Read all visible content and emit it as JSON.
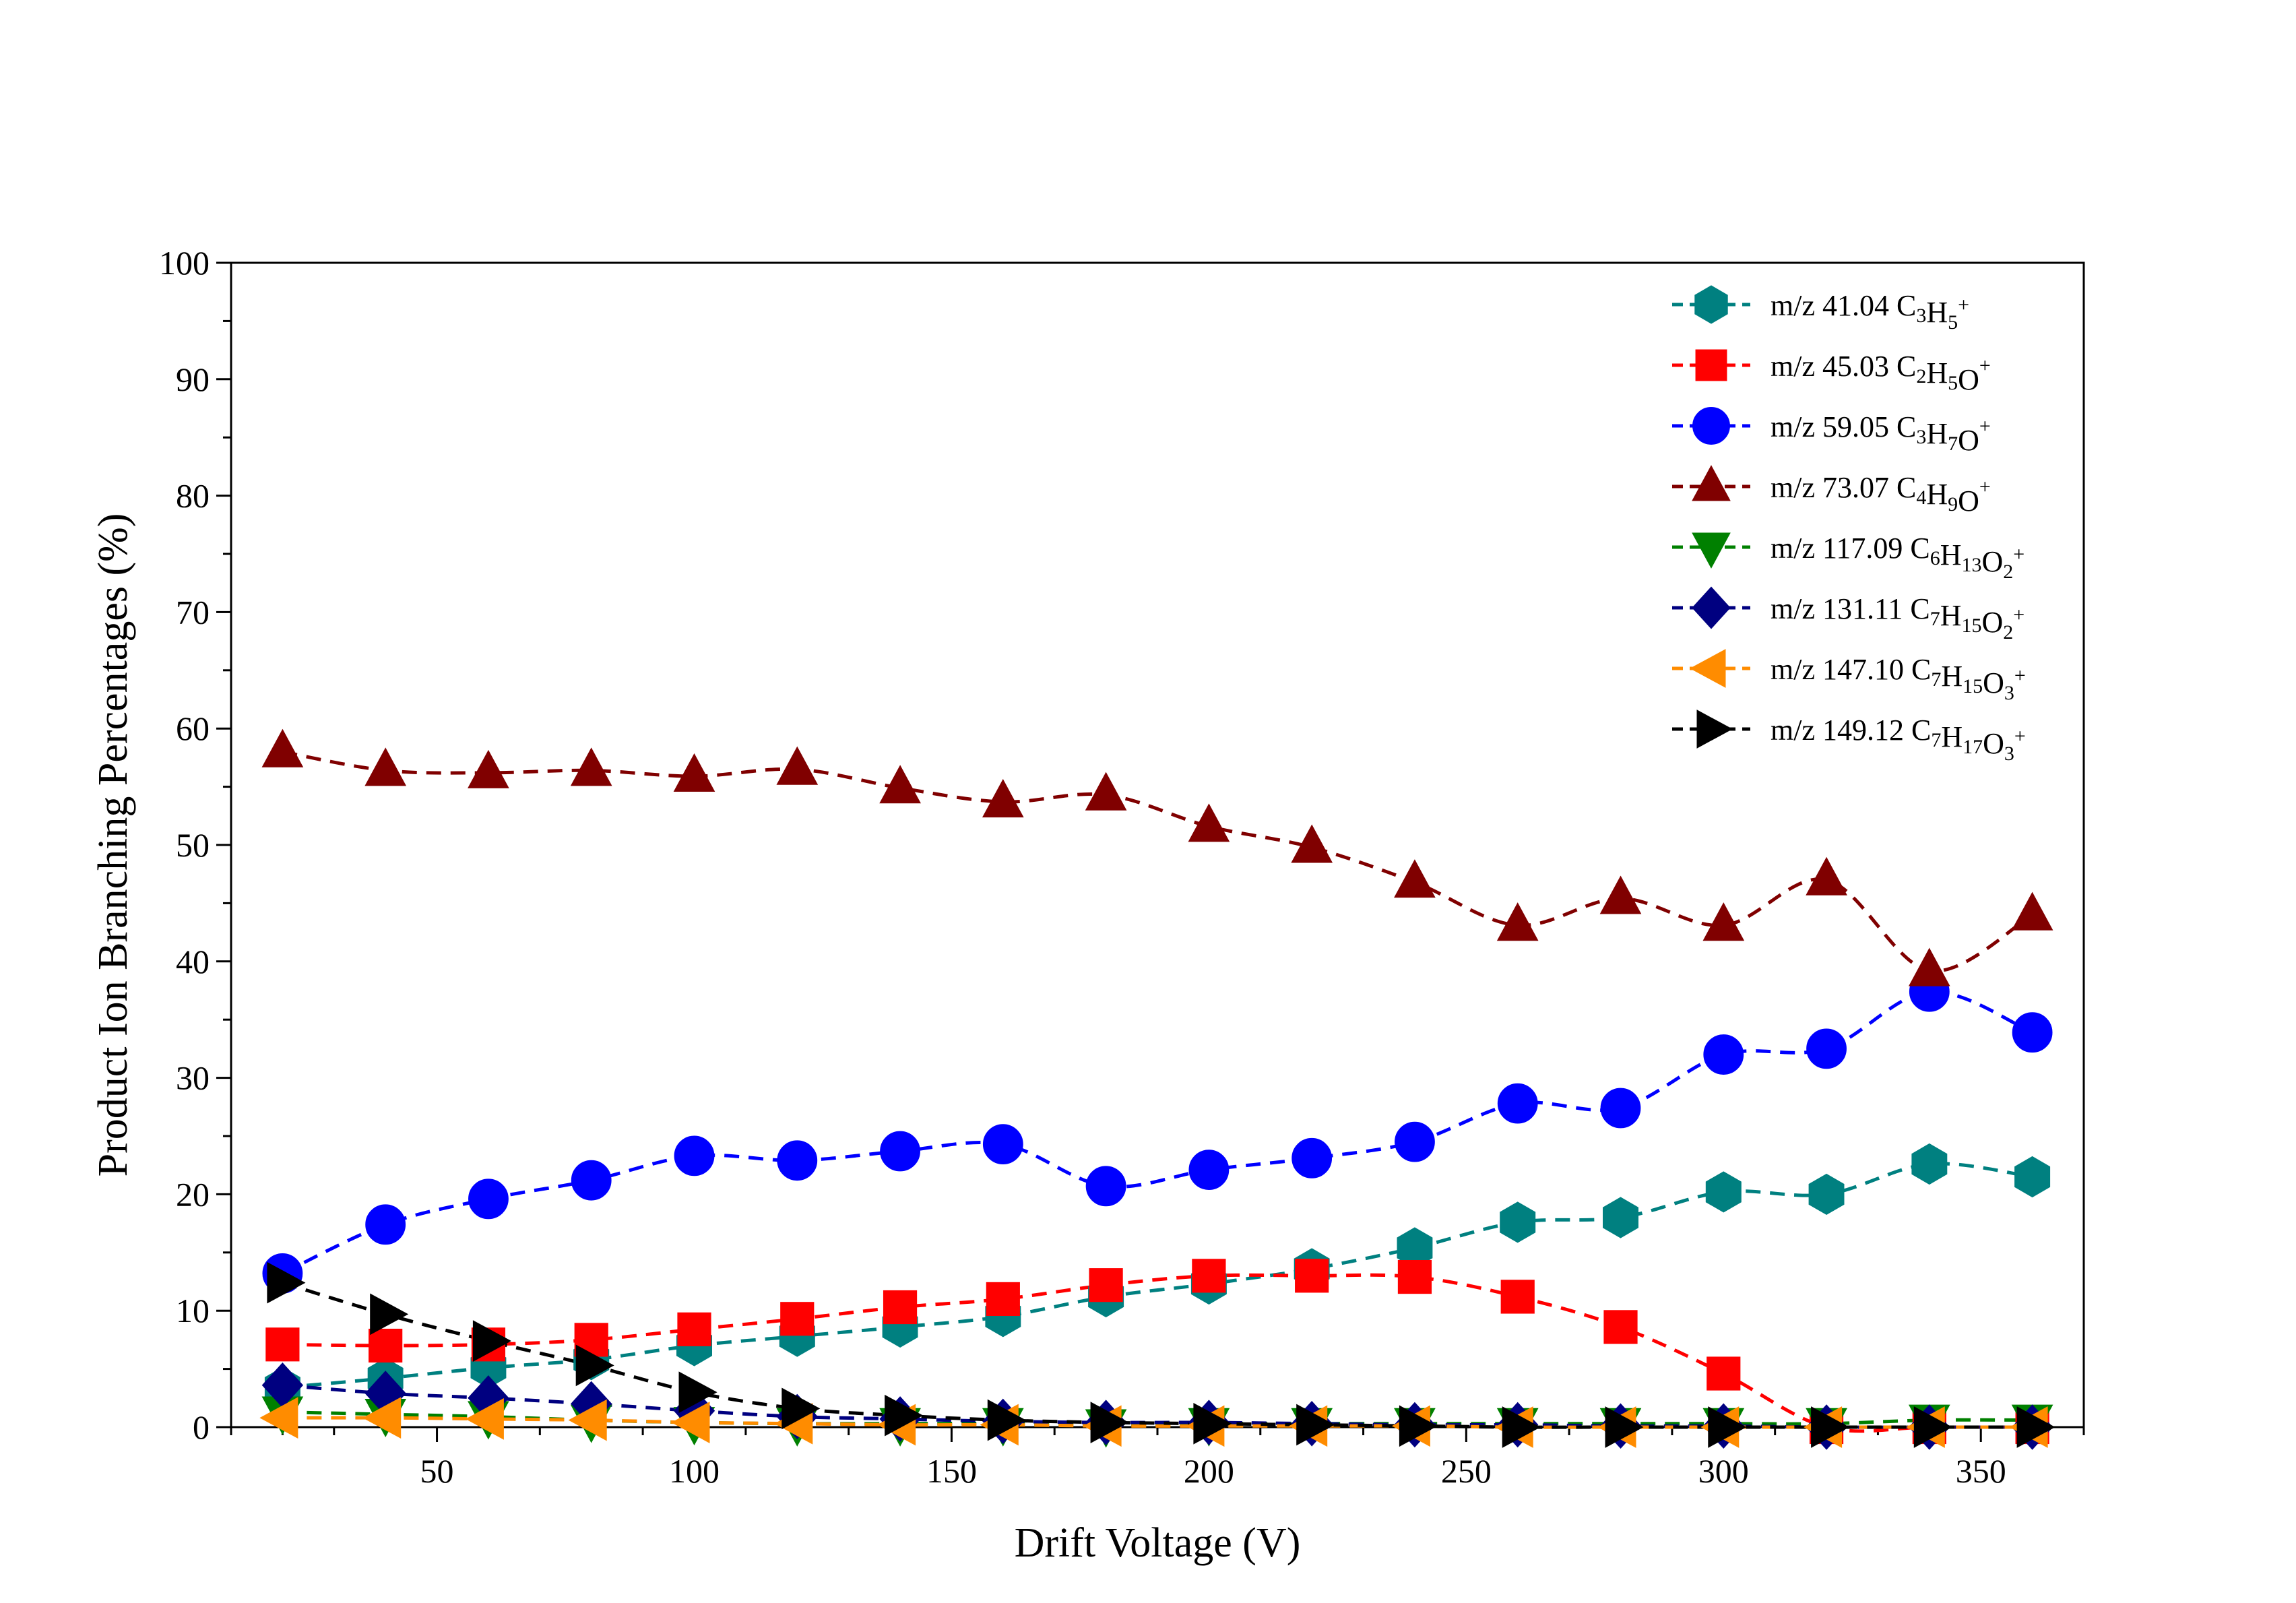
{
  "chart_data": {
    "type": "line",
    "title": "",
    "xlabel": "Drift Voltage (V)",
    "ylabel": "Product Ion Branching Percentages (%)",
    "xlim": [
      10,
      370
    ],
    "ylim": [
      0,
      100
    ],
    "x_ticks": [
      50,
      100,
      150,
      200,
      250,
      300,
      350
    ],
    "y_ticks": [
      0,
      10,
      20,
      30,
      40,
      50,
      60,
      70,
      80,
      90,
      100
    ],
    "grid": false,
    "legend_position": "top-right",
    "line_style": "dashed",
    "x": [
      20,
      40,
      60,
      80,
      100,
      120,
      140,
      160,
      180,
      200,
      220,
      240,
      260,
      280,
      300,
      320,
      340,
      360
    ],
    "series": [
      {
        "name": "m/z 41.04 C3H5+",
        "label_parts": [
          [
            "m/z 41.04 C",
            "n"
          ],
          [
            "3",
            "sub"
          ],
          [
            "H",
            "n"
          ],
          [
            "5",
            "sub"
          ],
          [
            "+",
            "sup"
          ]
        ],
        "color": "#008080",
        "marker": "hexagon",
        "values": [
          3.4,
          4.2,
          5.1,
          5.8,
          7.0,
          7.8,
          8.6,
          9.5,
          11.2,
          12.3,
          13.6,
          15.4,
          17.6,
          18.0,
          20.2,
          20.0,
          22.6,
          21.5
        ]
      },
      {
        "name": "m/z 45.03 C2H5O+",
        "label_parts": [
          [
            "m/z 45.03 C",
            "n"
          ],
          [
            "2",
            "sub"
          ],
          [
            "H",
            "n"
          ],
          [
            "5",
            "sub"
          ],
          [
            "O",
            "n"
          ],
          [
            "+",
            "sup"
          ]
        ],
        "color": "#ff0000",
        "marker": "square",
        "values": [
          7.1,
          7.0,
          7.1,
          7.5,
          8.4,
          9.3,
          10.3,
          11.0,
          12.2,
          13.0,
          13.0,
          12.9,
          11.2,
          8.6,
          4.6,
          0.0,
          0.0,
          0.0
        ]
      },
      {
        "name": "m/z 59.05 C3H7O+",
        "label_parts": [
          [
            "m/z 59.05 C",
            "n"
          ],
          [
            "3",
            "sub"
          ],
          [
            "H",
            "n"
          ],
          [
            "7",
            "sub"
          ],
          [
            "O",
            "n"
          ],
          [
            "+",
            "sup"
          ]
        ],
        "color": "#0000ff",
        "marker": "circle",
        "values": [
          13.2,
          17.4,
          19.6,
          21.2,
          23.3,
          22.9,
          23.7,
          24.3,
          20.7,
          22.1,
          23.1,
          24.5,
          27.8,
          27.4,
          32.0,
          32.5,
          37.4,
          33.9
        ]
      },
      {
        "name": "m/z 73.07 C4H9O+",
        "label_parts": [
          [
            "m/z 73.07 C",
            "n"
          ],
          [
            "4",
            "sub"
          ],
          [
            "H",
            "n"
          ],
          [
            "9",
            "sub"
          ],
          [
            "O",
            "n"
          ],
          [
            "+",
            "sup"
          ]
        ],
        "color": "#800000",
        "marker": "triangle-up",
        "values": [
          58.0,
          56.4,
          56.2,
          56.4,
          55.9,
          56.5,
          54.9,
          53.7,
          54.3,
          51.6,
          49.8,
          46.8,
          43.1,
          45.4,
          43.1,
          47.0,
          39.2,
          44.0
        ]
      },
      {
        "name": "m/z 117.09 C6H13O2+",
        "label_parts": [
          [
            "m/z 117.09 C",
            "n"
          ],
          [
            "6",
            "sub"
          ],
          [
            "H",
            "n"
          ],
          [
            "13",
            "sub"
          ],
          [
            "O",
            "n"
          ],
          [
            "2",
            "sub"
          ],
          [
            "+",
            "sup"
          ]
        ],
        "color": "#008000",
        "marker": "triangle-down",
        "values": [
          1.3,
          1.1,
          0.9,
          0.6,
          0.4,
          0.3,
          0.3,
          0.3,
          0.2,
          0.3,
          0.3,
          0.3,
          0.3,
          0.3,
          0.3,
          0.3,
          0.6,
          0.6
        ]
      },
      {
        "name": "m/z 131.11 C7H15O2+",
        "label_parts": [
          [
            "m/z 131.11 C",
            "n"
          ],
          [
            "7",
            "sub"
          ],
          [
            "H",
            "n"
          ],
          [
            "15",
            "sub"
          ],
          [
            "O",
            "n"
          ],
          [
            "2",
            "sub"
          ],
          [
            "+",
            "sup"
          ]
        ],
        "color": "#000080",
        "marker": "diamond",
        "values": [
          3.6,
          2.9,
          2.5,
          2.0,
          1.4,
          0.9,
          0.7,
          0.5,
          0.4,
          0.4,
          0.3,
          0.2,
          0.2,
          0.1,
          0.1,
          0.0,
          0.0,
          0.0
        ]
      },
      {
        "name": "m/z 147.10 C7H15O3+",
        "label_parts": [
          [
            "m/z 147.10 C",
            "n"
          ],
          [
            "7",
            "sub"
          ],
          [
            "H",
            "n"
          ],
          [
            "15",
            "sub"
          ],
          [
            "O",
            "n"
          ],
          [
            "3",
            "sub"
          ],
          [
            "+",
            "sup"
          ]
        ],
        "color": "#ff8c00",
        "marker": "triangle-left",
        "values": [
          0.8,
          0.8,
          0.7,
          0.6,
          0.4,
          0.3,
          0.2,
          0.2,
          0.1,
          0.1,
          0.1,
          0.1,
          0.0,
          0.0,
          0.0,
          0.0,
          0.0,
          0.0
        ]
      },
      {
        "name": "m/z 149.12 C7H17O3+",
        "label_parts": [
          [
            "m/z 149.12 C",
            "n"
          ],
          [
            "7",
            "sub"
          ],
          [
            "H",
            "n"
          ],
          [
            "17",
            "sub"
          ],
          [
            "O",
            "n"
          ],
          [
            "3",
            "sub"
          ],
          [
            "+",
            "sup"
          ]
        ],
        "color": "#000000",
        "marker": "triangle-right",
        "values": [
          12.4,
          9.7,
          7.4,
          5.3,
          3.0,
          1.6,
          1.0,
          0.6,
          0.4,
          0.3,
          0.2,
          0.1,
          0.0,
          0.0,
          0.0,
          0.0,
          0.0,
          0.0
        ]
      }
    ]
  }
}
